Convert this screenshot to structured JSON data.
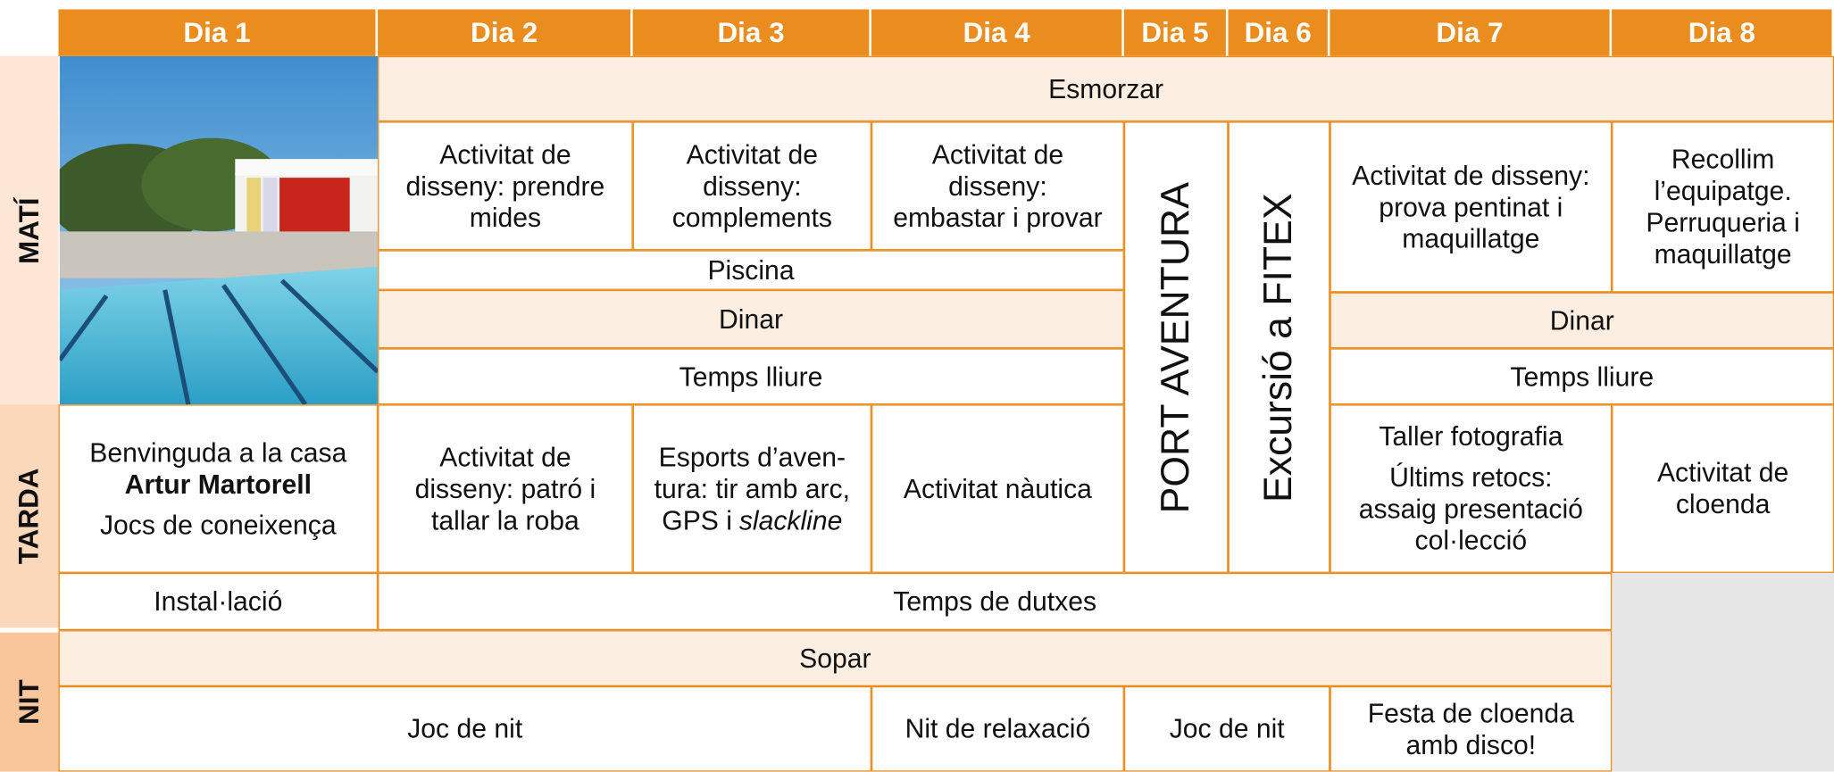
{
  "header": {
    "days": [
      "Dia 1",
      "Dia 2",
      "Dia 3",
      "Dia 4",
      "Dia 5",
      "Dia 6",
      "Dia 7",
      "Dia 8"
    ]
  },
  "periods": [
    "MATÍ",
    "TARDA",
    "NIT"
  ],
  "cells": [
    {
      "lines": [
        "Esmorzar"
      ]
    },
    {
      "lines": [
        "Activitat de",
        "disseny: prendre",
        "mides"
      ]
    },
    {
      "lines": [
        "Activitat de",
        "disseny:",
        "complements"
      ]
    },
    {
      "lines": [
        "Activitat de",
        "disseny:",
        "embastar i provar"
      ]
    },
    {
      "lines": [
        "Piscina"
      ]
    },
    {
      "lines": [
        "Dinar"
      ]
    },
    {
      "lines": [
        "Temps lliure"
      ]
    },
    {
      "lines": [
        "PORT AVENTURA"
      ]
    },
    {
      "lines": [
        "Excursió a FITEX"
      ]
    },
    {
      "lines": [
        "Activitat de disseny:",
        "prova pentinat i",
        "maquillatge"
      ]
    },
    {
      "lines": [
        "Recollim",
        "l’equipatge.",
        "Perruqueria i",
        "maquillatge"
      ]
    },
    {
      "lines": [
        "Dinar"
      ]
    },
    {
      "lines": [
        "Temps lliure"
      ]
    },
    {
      "lines": [
        "Benvinguda a la casa",
        "Artur Martorell",
        "Jocs de coneixença"
      ]
    },
    {
      "lines": [
        "Activitat de",
        "disseny: patró i",
        "tallar la roba"
      ]
    },
    {
      "lines": [
        "Esports d’aven-",
        "tura: tir amb arc,",
        [
          "GPS i",
          "slackline"
        ]
      ]
    },
    {
      "lines": [
        "Activitat nàutica"
      ]
    },
    {
      "lines": [
        "Taller fotografia",
        "Últims retocs:",
        "assaig presentació",
        "col·lecció"
      ]
    },
    {
      "lines": [
        "Activitat de",
        "cloenda"
      ]
    },
    {
      "lines": [
        "Instal·lació"
      ]
    },
    {
      "lines": [
        "Temps de dutxes"
      ]
    },
    {
      "lines": [
        "Sopar"
      ]
    },
    {
      "lines": [
        "Joc de nit"
      ]
    },
    {
      "lines": [
        "Nit de relaxació"
      ]
    },
    {
      "lines": [
        "Joc de nit"
      ]
    },
    {
      "lines": [
        "Festa de cloenda",
        "amb disco!"
      ]
    }
  ]
}
